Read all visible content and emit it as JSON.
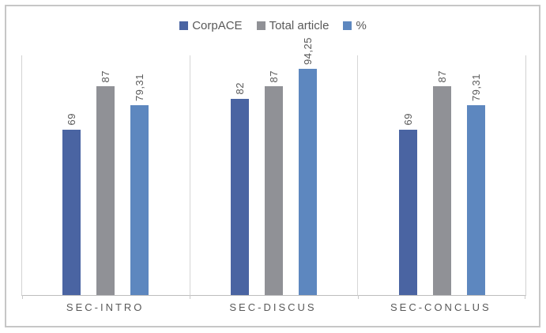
{
  "chart_data": {
    "type": "bar",
    "title": "",
    "xlabel": "",
    "ylabel": "",
    "categories": [
      "SEC-INTRO",
      "SEC-DISCUS",
      "SEC-CONCLUS"
    ],
    "series": [
      {
        "name": "CorpACE",
        "color": "#4a64a2",
        "values": [
          69,
          82,
          69
        ],
        "labels": [
          "69",
          "82",
          "69"
        ]
      },
      {
        "name": "Total article",
        "color": "#909196",
        "values": [
          87,
          87,
          87
        ],
        "labels": [
          "87",
          "87",
          "87"
        ]
      },
      {
        "name": "%",
        "color": "#5d87bf",
        "values": [
          79.31,
          94.25,
          79.31
        ],
        "labels": [
          "79,31",
          "94,25",
          "79,31"
        ]
      }
    ],
    "ylim": [
      0,
      100
    ],
    "legend_position": "top-center",
    "grid": "vertical-category-separators",
    "data_label_rotation": "vertical-bottom-up",
    "decimal_separator": ","
  },
  "styles": {
    "frame_border": "#c6c6c6",
    "axis_line": "#bdbdbd",
    "separator_line": "#d6d6d6",
    "label_text": "#595959",
    "background": "#ffffff"
  }
}
